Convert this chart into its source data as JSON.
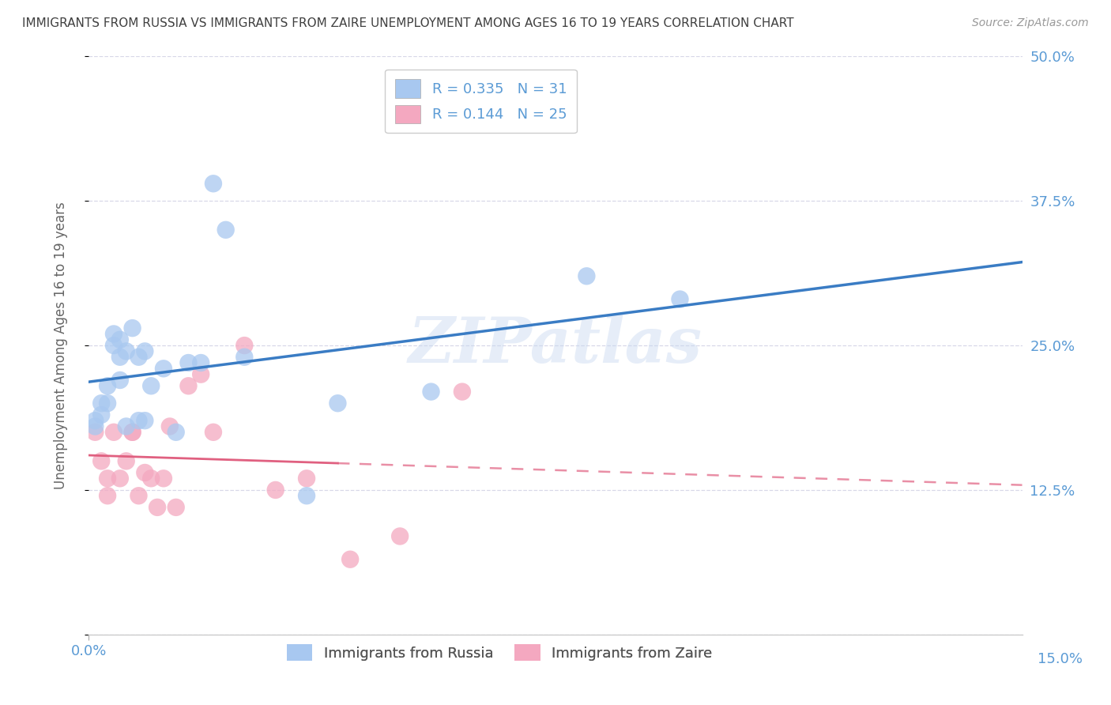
{
  "title": "IMMIGRANTS FROM RUSSIA VS IMMIGRANTS FROM ZAIRE UNEMPLOYMENT AMONG AGES 16 TO 19 YEARS CORRELATION CHART",
  "source": "Source: ZipAtlas.com",
  "ylabel": "Unemployment Among Ages 16 to 19 years",
  "xlim": [
    0.0,
    0.15
  ],
  "ylim": [
    0.0,
    0.5
  ],
  "yticks": [
    0.0,
    0.125,
    0.25,
    0.375,
    0.5
  ],
  "yticklabels": [
    "",
    "12.5%",
    "25.0%",
    "37.5%",
    "50.0%"
  ],
  "russia_color": "#a8c8f0",
  "zaire_color": "#f4a8c0",
  "russia_line_color": "#3a7cc4",
  "zaire_line_color": "#e06080",
  "legend_R_russia": "0.335",
  "legend_N_russia": "31",
  "legend_R_zaire": "0.144",
  "legend_N_zaire": "25",
  "watermark": "ZIPatlas",
  "russia_x": [
    0.001,
    0.001,
    0.002,
    0.002,
    0.003,
    0.003,
    0.004,
    0.004,
    0.005,
    0.005,
    0.005,
    0.006,
    0.006,
    0.007,
    0.008,
    0.008,
    0.009,
    0.009,
    0.01,
    0.012,
    0.014,
    0.016,
    0.018,
    0.02,
    0.022,
    0.025,
    0.035,
    0.04,
    0.055,
    0.08,
    0.095
  ],
  "russia_y": [
    0.18,
    0.185,
    0.19,
    0.2,
    0.2,
    0.215,
    0.25,
    0.26,
    0.22,
    0.24,
    0.255,
    0.245,
    0.18,
    0.265,
    0.24,
    0.185,
    0.245,
    0.185,
    0.215,
    0.23,
    0.175,
    0.235,
    0.235,
    0.39,
    0.35,
    0.24,
    0.12,
    0.2,
    0.21,
    0.31,
    0.29
  ],
  "zaire_x": [
    0.001,
    0.002,
    0.003,
    0.003,
    0.004,
    0.005,
    0.006,
    0.007,
    0.007,
    0.008,
    0.009,
    0.01,
    0.011,
    0.012,
    0.013,
    0.014,
    0.016,
    0.018,
    0.02,
    0.025,
    0.03,
    0.035,
    0.042,
    0.05,
    0.06
  ],
  "zaire_y": [
    0.175,
    0.15,
    0.135,
    0.12,
    0.175,
    0.135,
    0.15,
    0.175,
    0.175,
    0.12,
    0.14,
    0.135,
    0.11,
    0.135,
    0.18,
    0.11,
    0.215,
    0.225,
    0.175,
    0.25,
    0.125,
    0.135,
    0.065,
    0.085,
    0.21
  ],
  "background_color": "#ffffff",
  "grid_color": "#d8d8e8",
  "title_color": "#404040",
  "tick_label_color": "#5b9bd5"
}
